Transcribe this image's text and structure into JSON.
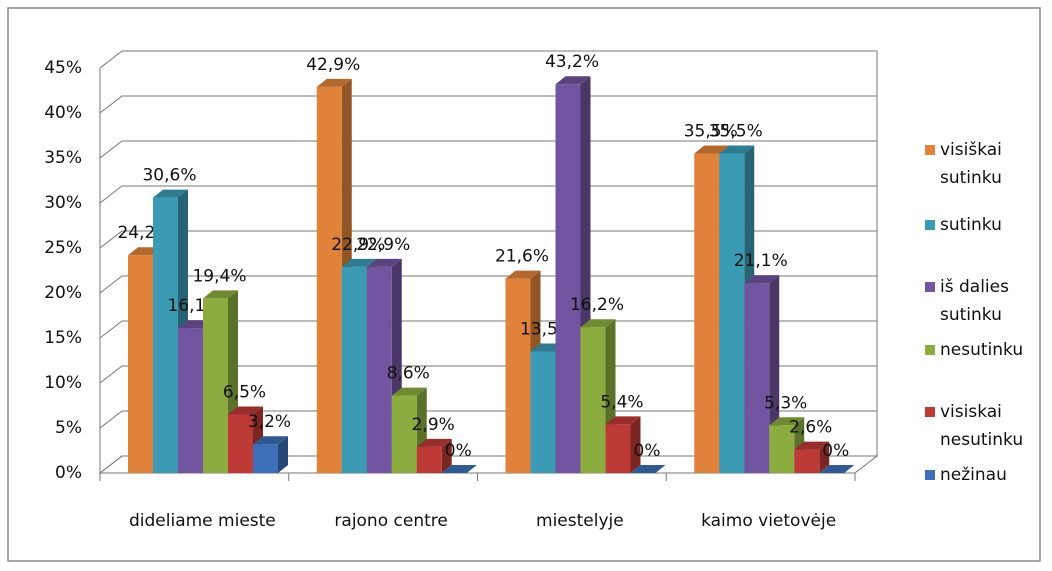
{
  "chart_data": {
    "type": "bar3d",
    "categories": [
      "dideliame mieste",
      "rajono centre",
      "miestelyje",
      "kaimo vietovėje"
    ],
    "series": [
      {
        "name": "visiškai sutinku",
        "color": "#e0823a",
        "values": [
          24.2,
          42.9,
          21.6,
          35.5
        ],
        "value_labels": [
          "24,2%",
          "42,9%",
          "21,6%",
          "35,5%"
        ]
      },
      {
        "name": "sutinku",
        "color": "#3b9ab4",
        "values": [
          30.6,
          22.9,
          13.5,
          35.5
        ],
        "value_labels": [
          "30,6%",
          "22,9%",
          "13,5%",
          "35,5%"
        ]
      },
      {
        "name": "iš dalies sutinku",
        "color": "#7155a0",
        "values": [
          16.1,
          22.9,
          43.2,
          21.1
        ],
        "value_labels": [
          "16,1%",
          "22,9%",
          "43,2%",
          "21,1%"
        ]
      },
      {
        "name": "nesutinku",
        "color": "#8cac3f",
        "values": [
          19.4,
          8.6,
          16.2,
          5.3
        ],
        "value_labels": [
          "19,4%",
          "8,6%",
          "16,2%",
          "5,3%"
        ]
      },
      {
        "name": "visiskai nesutinku",
        "color": "#bd3a36",
        "values": [
          6.5,
          2.9,
          5.4,
          2.6
        ],
        "value_labels": [
          "6,5%",
          "2,9%",
          "5,4%",
          "2,6%"
        ]
      },
      {
        "name": "nežinau",
        "color": "#3c6fb7",
        "values": [
          3.2,
          0,
          0,
          0
        ],
        "value_labels": [
          "3,2%",
          "0%",
          "0%",
          "0%"
        ]
      }
    ],
    "ylim": [
      0,
      45
    ],
    "yticks": [
      {
        "value": 0,
        "label": "0%"
      },
      {
        "value": 5,
        "label": "5%"
      },
      {
        "value": 10,
        "label": "10%"
      },
      {
        "value": 15,
        "label": "15%"
      },
      {
        "value": 20,
        "label": "20%"
      },
      {
        "value": 25,
        "label": "25%"
      },
      {
        "value": 30,
        "label": "30%"
      },
      {
        "value": 35,
        "label": "35%"
      },
      {
        "value": 40,
        "label": "40%"
      },
      {
        "value": 45,
        "label": "45%"
      }
    ],
    "grid": true,
    "legend": "right"
  }
}
